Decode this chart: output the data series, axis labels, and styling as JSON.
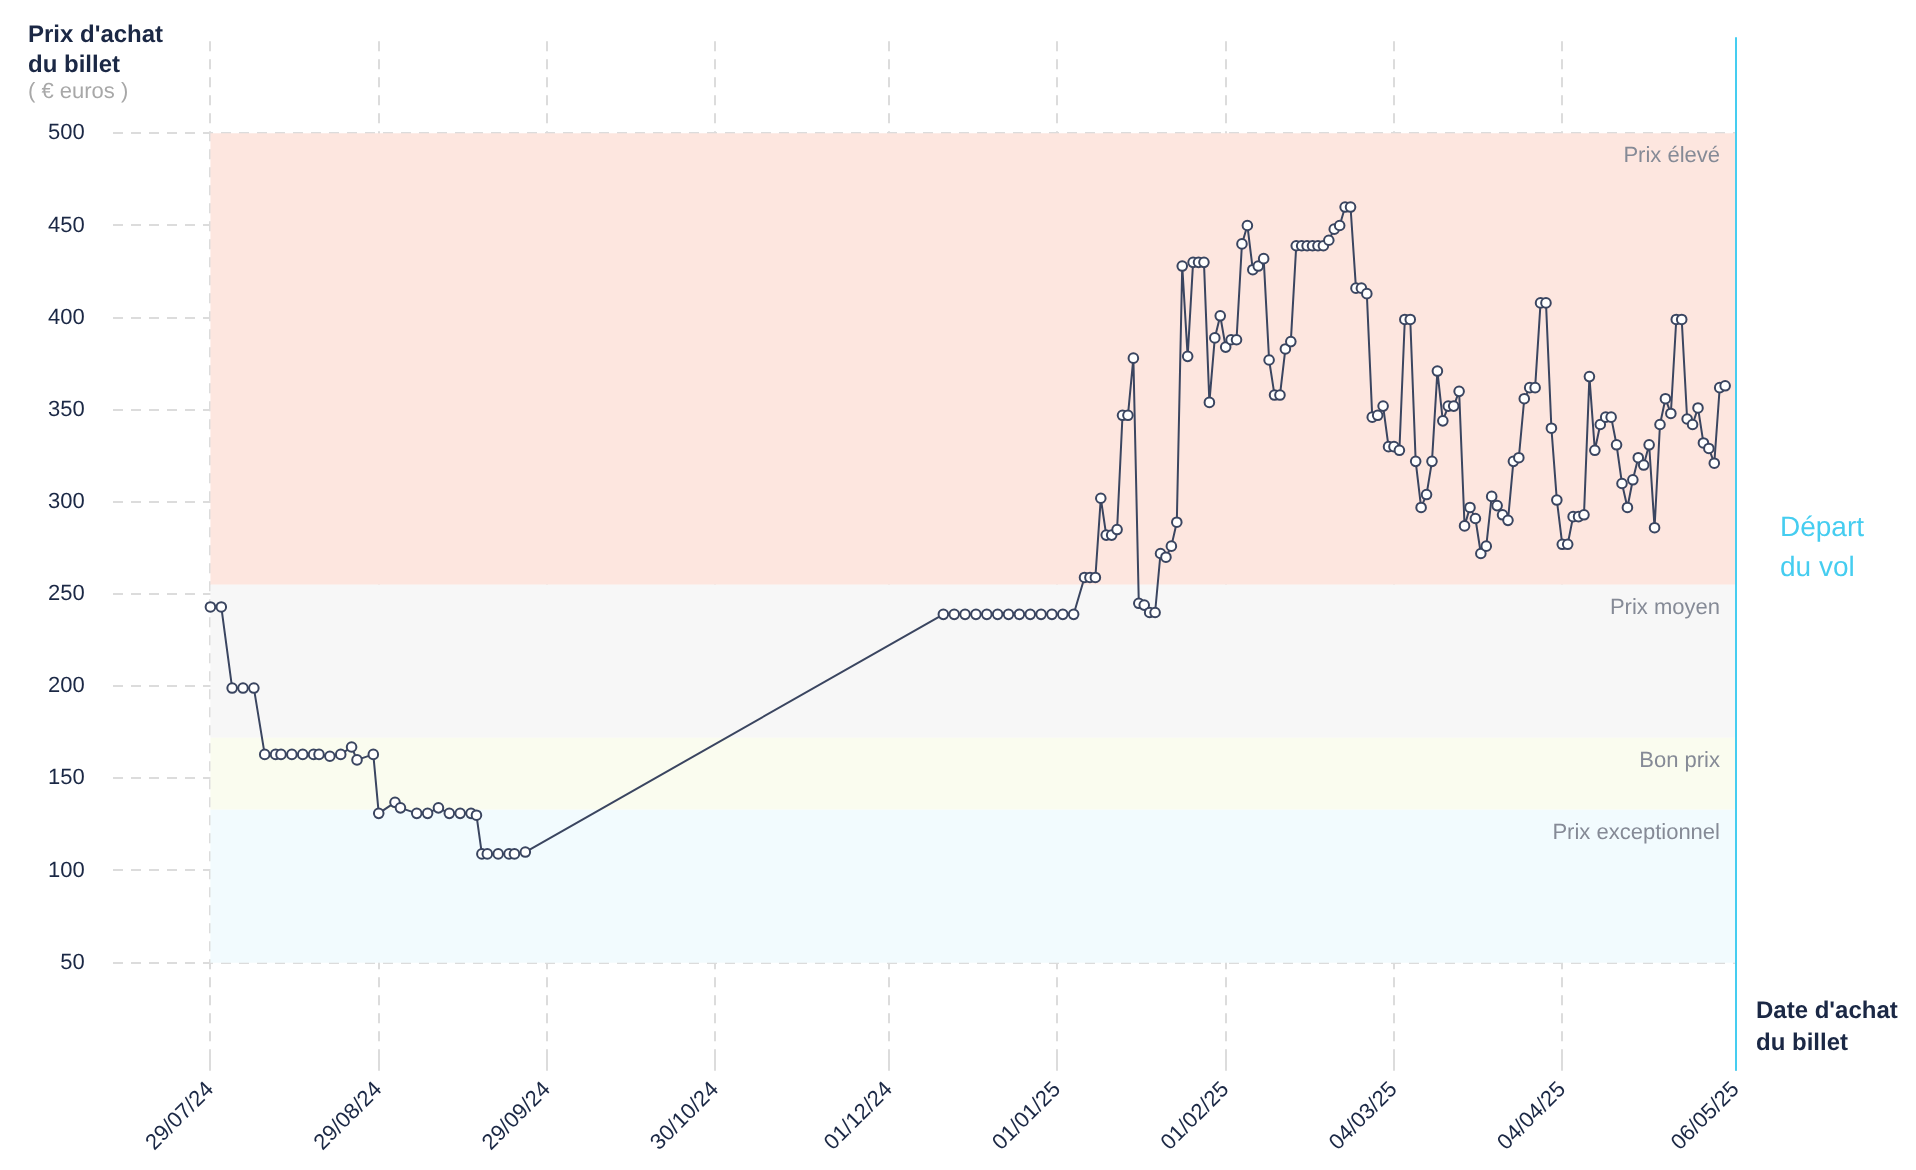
{
  "chart_data": {
    "type": "line",
    "ylabel": "Prix d'achat du billet",
    "xlabel": "Date d'achat du billet",
    "annotations": [
      "( € euros )"
    ],
    "color": "#3a4560",
    "marker": "circle",
    "line_style": "solid",
    "grid": true,
    "legend": false,
    "x": [
      "2024-07-29",
      "2024-07-31",
      "2024-08-02",
      "2024-08-04",
      "2024-08-06",
      "2024-08-08",
      "2024-08-10",
      "2024-08-11",
      "2024-08-13",
      "2024-08-15",
      "2024-08-17",
      "2024-08-18",
      "2024-08-20",
      "2024-08-22",
      "2024-08-24",
      "2024-08-25",
      "2024-08-28",
      "2024-08-29",
      "2024-09-01",
      "2024-09-02",
      "2024-09-05",
      "2024-09-07",
      "2024-09-09",
      "2024-09-11",
      "2024-09-13",
      "2024-09-15",
      "2024-09-16",
      "2024-09-17",
      "2024-09-18",
      "2024-09-20",
      "2024-09-22",
      "2024-09-23",
      "2024-09-25",
      "2024-12-11",
      "2024-12-13",
      "2024-12-15",
      "2024-12-17",
      "2024-12-19",
      "2024-12-21",
      "2024-12-23",
      "2024-12-25",
      "2024-12-27",
      "2024-12-29",
      "2024-12-31",
      "2025-01-02",
      "2025-01-04",
      "2025-01-06",
      "2025-01-07",
      "2025-01-08",
      "2025-01-09",
      "2025-01-10",
      "2025-01-11",
      "2025-01-12",
      "2025-01-13",
      "2025-01-14",
      "2025-01-15",
      "2025-01-16",
      "2025-01-17",
      "2025-01-18",
      "2025-01-19",
      "2025-01-20",
      "2025-01-21",
      "2025-01-22",
      "2025-01-23",
      "2025-01-24",
      "2025-01-25",
      "2025-01-26",
      "2025-01-27",
      "2025-01-28",
      "2025-01-29",
      "2025-01-30",
      "2025-01-31",
      "2025-02-01",
      "2025-02-02",
      "2025-02-03",
      "2025-02-04",
      "2025-02-05",
      "2025-02-06",
      "2025-02-07",
      "2025-02-08",
      "2025-02-09",
      "2025-02-10",
      "2025-02-11",
      "2025-02-12",
      "2025-02-13",
      "2025-02-14",
      "2025-02-15",
      "2025-02-16",
      "2025-02-17",
      "2025-02-18",
      "2025-02-19",
      "2025-02-20",
      "2025-02-21",
      "2025-02-22",
      "2025-02-23",
      "2025-02-24",
      "2025-02-25",
      "2025-02-26",
      "2025-02-27",
      "2025-02-28",
      "2025-03-01",
      "2025-03-02",
      "2025-03-03",
      "2025-03-04",
      "2025-03-05",
      "2025-03-06",
      "2025-03-07",
      "2025-03-08",
      "2025-03-09",
      "2025-03-10",
      "2025-03-11",
      "2025-03-12",
      "2025-03-13",
      "2025-03-14",
      "2025-03-15",
      "2025-03-16",
      "2025-03-17",
      "2025-03-18",
      "2025-03-19",
      "2025-03-20",
      "2025-03-21",
      "2025-03-22",
      "2025-03-23",
      "2025-03-24",
      "2025-03-25",
      "2025-03-26",
      "2025-03-27",
      "2025-03-28",
      "2025-03-29",
      "2025-03-30",
      "2025-03-31",
      "2025-04-01",
      "2025-04-02",
      "2025-04-03",
      "2025-04-04",
      "2025-04-05",
      "2025-04-06",
      "2025-04-07",
      "2025-04-08",
      "2025-04-09",
      "2025-04-10",
      "2025-04-11",
      "2025-04-12",
      "2025-04-13",
      "2025-04-14",
      "2025-04-15",
      "2025-04-16",
      "2025-04-17",
      "2025-04-18",
      "2025-04-19",
      "2025-04-20",
      "2025-04-21",
      "2025-04-22",
      "2025-04-23",
      "2025-04-24",
      "2025-04-25",
      "2025-04-26",
      "2025-04-27",
      "2025-04-28",
      "2025-04-29",
      "2025-04-30",
      "2025-05-01",
      "2025-05-02",
      "2025-05-03",
      "2025-05-04"
    ],
    "values": [
      243,
      243,
      199,
      199,
      199,
      163,
      163,
      163,
      163,
      163,
      163,
      163,
      162,
      163,
      167,
      160,
      163,
      131,
      137,
      134,
      131,
      131,
      134,
      131,
      131,
      131,
      130,
      109,
      109,
      109,
      109,
      109,
      110,
      239,
      239,
      239,
      239,
      239,
      239,
      239,
      239,
      239,
      239,
      239,
      239,
      239,
      259,
      259,
      259,
      302,
      282,
      282,
      285,
      347,
      347,
      378,
      245,
      244,
      240,
      240,
      272,
      270,
      276,
      289,
      428,
      379,
      430,
      430,
      430,
      354,
      389,
      401,
      384,
      388,
      388,
      440,
      450,
      426,
      428,
      432,
      377,
      358,
      358,
      383,
      387,
      439,
      439,
      439,
      439,
      439,
      439,
      442,
      448,
      450,
      460,
      460,
      416,
      416,
      413,
      346,
      347,
      352,
      330,
      330,
      328,
      399,
      399,
      322,
      297,
      304,
      322,
      371,
      344,
      352,
      352,
      360,
      287,
      297,
      291,
      272,
      276,
      303,
      298,
      293,
      290,
      322,
      324,
      356,
      362,
      362,
      408,
      408,
      340,
      301,
      277,
      277,
      292,
      292,
      293,
      368,
      328,
      342,
      346,
      346,
      331,
      310,
      297,
      312,
      324,
      320,
      331,
      286,
      342,
      356,
      348,
      399,
      399,
      345,
      342,
      351,
      332,
      329,
      321,
      362,
      363
    ],
    "xlim": [
      "2024-07-11",
      "2025-05-06"
    ],
    "ylim": [
      0,
      550
    ],
    "xticks": [
      {
        "value": "2024-07-29",
        "label": "29/07/24"
      },
      {
        "value": "2024-08-29",
        "label": "29/08/24"
      },
      {
        "value": "2024-09-29",
        "label": "29/09/24"
      },
      {
        "value": "2024-10-30",
        "label": "30/10/24"
      },
      {
        "value": "2024-12-01",
        "label": "01/12/24"
      },
      {
        "value": "2025-01-01",
        "label": "01/01/25"
      },
      {
        "value": "2025-02-01",
        "label": "01/02/25"
      },
      {
        "value": "2025-03-04",
        "label": "04/03/25"
      },
      {
        "value": "2025-04-04",
        "label": "04/04/25"
      },
      {
        "value": "2025-05-06",
        "label": "06/05/25"
      }
    ],
    "yticks": [
      50,
      100,
      150,
      200,
      250,
      300,
      350,
      400,
      450,
      500
    ],
    "bands": [
      {
        "axis": "y",
        "from": 255,
        "to": 500,
        "label": "Prix élevé",
        "color": "#fde6df"
      },
      {
        "axis": "y",
        "from": 172,
        "to": 255,
        "label": "Prix moyen",
        "color": "#f7f7f7"
      },
      {
        "axis": "y",
        "from": 133,
        "to": 172,
        "label": "Bon prix",
        "color": "#fafcef"
      },
      {
        "axis": "y",
        "from": 50,
        "to": 133,
        "label": "Prix exceptionnel",
        "color": "#f2fbfe"
      }
    ],
    "ref_lines": [
      {
        "axis": "x",
        "value": "2025-05-06",
        "label": "Départ du vol",
        "color": "#45cdf0"
      }
    ]
  }
}
